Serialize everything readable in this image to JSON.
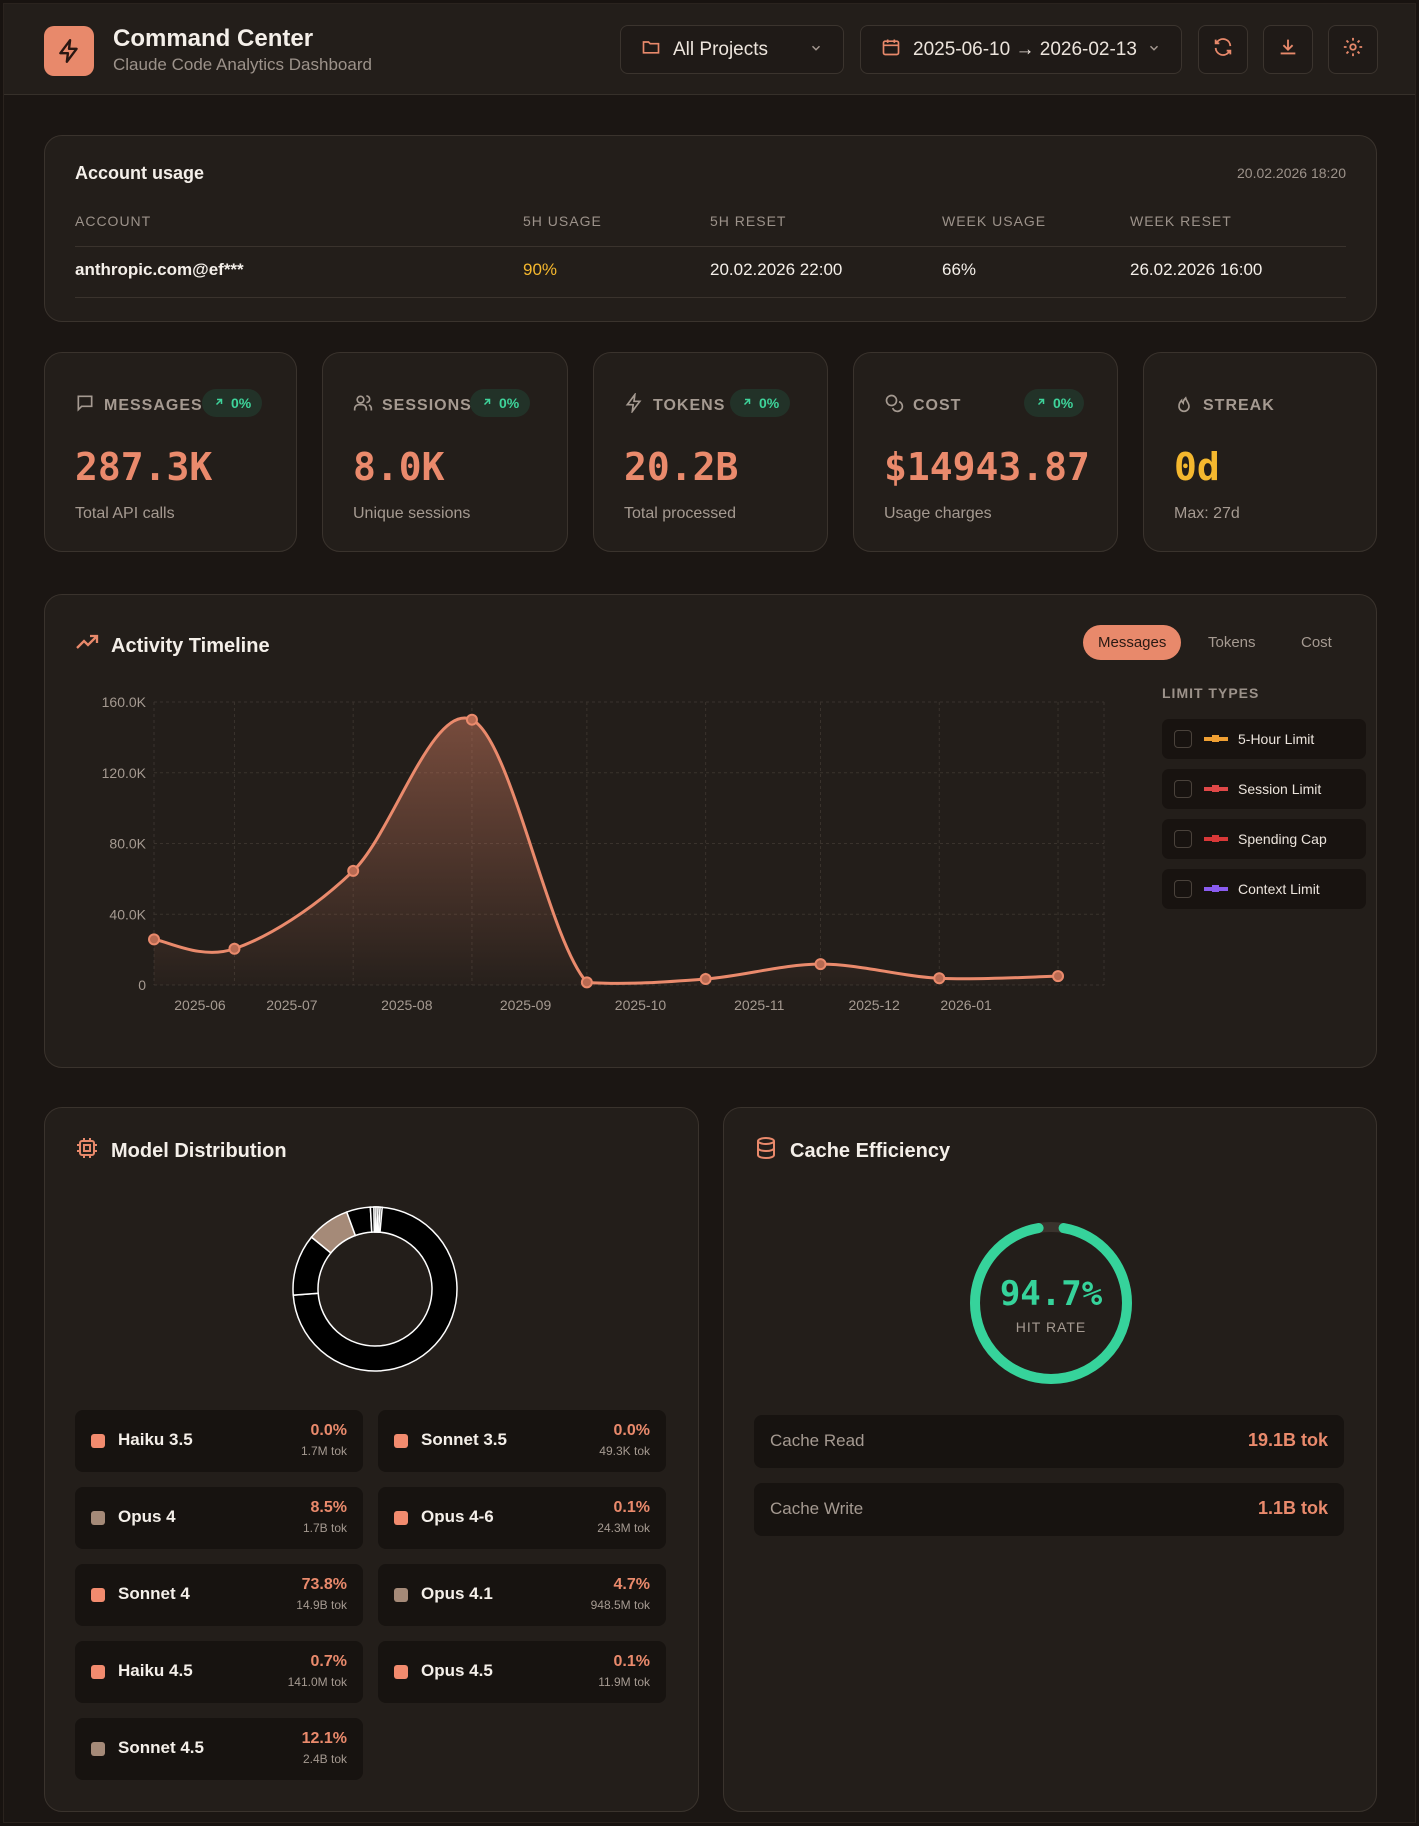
{
  "header": {
    "title": "Command Center",
    "subtitle": "Claude Code Analytics Dashboard",
    "project_select": "All Projects",
    "date_range": "2025-06-10 → 2026-02-13"
  },
  "account_usage": {
    "title": "Account usage",
    "timestamp": "20.02.2026 18:20",
    "columns": [
      "ACCOUNT",
      "5H USAGE",
      "5H RESET",
      "WEEK USAGE",
      "WEEK RESET"
    ],
    "row": {
      "account": "anthropic.com@ef***",
      "usage_5h": "90%",
      "reset_5h": "20.02.2026 22:00",
      "week_usage": "66%",
      "week_reset": "26.02.2026 16:00"
    }
  },
  "stats": [
    {
      "label": "MESSAGES",
      "badge": "0%",
      "value": "287.3K",
      "sub": "Total API calls"
    },
    {
      "label": "SESSIONS",
      "badge": "0%",
      "value": "8.0K",
      "sub": "Unique sessions"
    },
    {
      "label": "TOKENS",
      "badge": "0%",
      "value": "20.2B",
      "sub": "Total processed"
    },
    {
      "label": "COST",
      "badge": "0%",
      "value": "$14943.87",
      "sub": "Usage charges"
    },
    {
      "label": "STREAK",
      "value": "0d",
      "sub": "Max: 27d"
    }
  ],
  "timeline": {
    "title": "Activity Timeline",
    "tabs": [
      "Messages",
      "Tokens",
      "Cost"
    ],
    "active_tab": "Messages",
    "limit_types_title": "LIMIT TYPES",
    "limit_types": [
      {
        "label": "5-Hour Limit",
        "color": "#f0a033"
      },
      {
        "label": "Session Limit",
        "color": "#e04848"
      },
      {
        "label": "Spending Cap",
        "color": "#d93838"
      },
      {
        "label": "Context Limit",
        "color": "#8a5cf0"
      }
    ]
  },
  "chart_data": {
    "type": "area",
    "x": [
      "2025-06-10",
      "2025-07-01",
      "2025-08-01",
      "2025-09-01",
      "2025-10-01",
      "2025-11-01",
      "2025-12-01",
      "2026-01-01",
      "2026-02-01"
    ],
    "values": [
      25800,
      20500,
      64500,
      150000,
      1500,
      3400,
      11800,
      3800,
      5000
    ],
    "xlabel": "",
    "ylabel": "",
    "x_ticks": [
      "2025-06",
      "2025-07",
      "2025-08",
      "2025-09",
      "2025-10",
      "2025-11",
      "2025-12",
      "2026-01"
    ],
    "y_ticks": [
      "0",
      "40.0K",
      "80.0K",
      "120.0K",
      "160.0K"
    ],
    "ylim": [
      0,
      160000
    ],
    "grid": true,
    "color": "#ea8a6c"
  },
  "models": {
    "title": "Model Distribution",
    "items": [
      {
        "name": "Haiku 3.5",
        "pct": "0.0%",
        "tokens": "1.7M tok",
        "share": 0.0,
        "color": "#f28b6e"
      },
      {
        "name": "Sonnet 3.5",
        "pct": "0.0%",
        "tokens": "49.3K tok",
        "share": 0.0,
        "color": "#f28b6e"
      },
      {
        "name": "Opus 4",
        "pct": "8.5%",
        "tokens": "1.7B tok",
        "share": 8.5,
        "color": "#a58a78"
      },
      {
        "name": "Opus 4-6",
        "pct": "0.1%",
        "tokens": "24.3M tok",
        "share": 0.1,
        "color": "#f28b6e"
      },
      {
        "name": "Sonnet 4",
        "pct": "73.8%",
        "tokens": "14.9B tok",
        "share": 73.8,
        "color": "#f28b6e"
      },
      {
        "name": "Opus 4.1",
        "pct": "4.7%",
        "tokens": "948.5M tok",
        "share": 4.7,
        "color": "#a58a78"
      },
      {
        "name": "Haiku 4.5",
        "pct": "0.7%",
        "tokens": "141.0M tok",
        "share": 0.7,
        "color": "#f28b6e"
      },
      {
        "name": "Opus 4.5",
        "pct": "0.1%",
        "tokens": "11.9M tok",
        "share": 0.1,
        "color": "#f28b6e"
      },
      {
        "name": "Sonnet 4.5",
        "pct": "12.1%",
        "tokens": "2.4B tok",
        "share": 12.1,
        "color": "#a58a78"
      }
    ]
  },
  "cache": {
    "title": "Cache Efficiency",
    "hit_rate": "94.7%",
    "hit_rate_value": 0.947,
    "hit_label": "HIT RATE",
    "rows": [
      {
        "label": "Cache Read",
        "value": "19.1B tok"
      },
      {
        "label": "Cache Write",
        "value": "1.1B tok"
      }
    ]
  },
  "colors": {
    "accent": "#e8896b",
    "positive": "#3ed39a",
    "warning": "#f5b82e"
  }
}
